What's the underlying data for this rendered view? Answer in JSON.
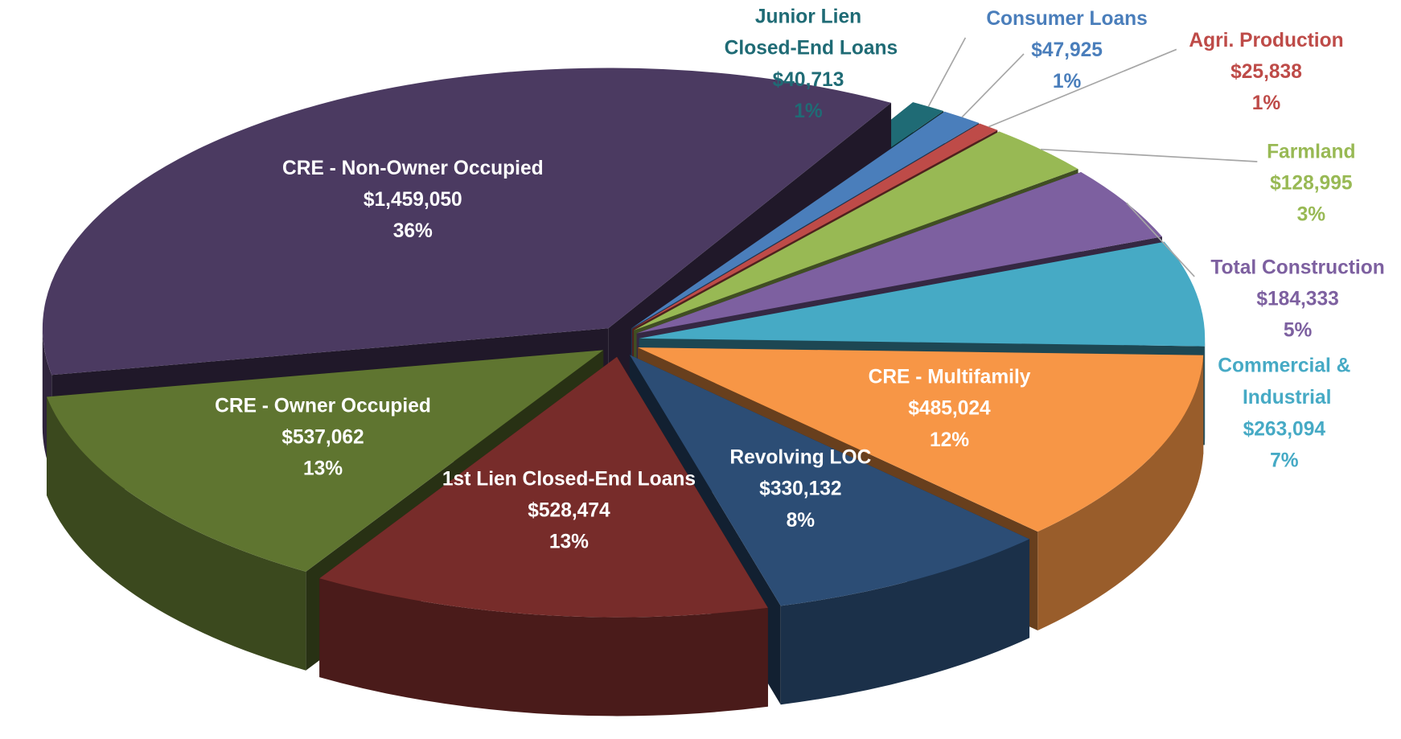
{
  "chart_data": {
    "type": "pie3d",
    "categories": [
      "Junior Lien Closed-End Loans",
      "Consumer Loans",
      "Agri. Production",
      "Farmland",
      "Total Construction",
      "Commercial & Industrial",
      "CRE - Multifamily",
      "Revolving LOC",
      "1st Lien Closed-End Loans",
      "CRE - Owner Occupied",
      "CRE - Non-Owner Occupied"
    ],
    "values": [
      40713,
      47925,
      25838,
      128995,
      184333,
      263094,
      485024,
      330132,
      528474,
      537062,
      1459050
    ],
    "value_labels": [
      "$40,713",
      "$47,925",
      "$25,838",
      "$128,995",
      "$184,333",
      "$263,094",
      "$485,024",
      "$330,132",
      "$528,474",
      "$537,062",
      "$1,459,050"
    ],
    "percent_labels": [
      "1%",
      "1%",
      "1%",
      "3%",
      "5%",
      "7%",
      "12%",
      "8%",
      "13%",
      "13%",
      "36%"
    ],
    "colors": [
      "#1f6b75",
      "#4a7ebb",
      "#be4b48",
      "#98b954",
      "#7d60a0",
      "#46aac5",
      "#f79646",
      "#2c4d75",
      "#772c2a",
      "#5f7530",
      "#4b3a61"
    ]
  }
}
